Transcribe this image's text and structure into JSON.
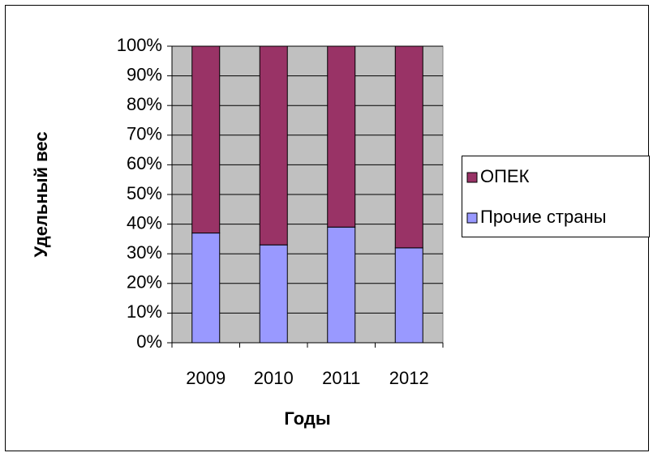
{
  "chart_data": {
    "type": "stacked_bar_100",
    "categories": [
      "2009",
      "2010",
      "2011",
      "2012"
    ],
    "series": [
      {
        "name": "Прочие страны",
        "color": "#9999ff",
        "values": [
          37,
          33,
          39,
          32
        ]
      },
      {
        "name": "ОПЕК",
        "color": "#993366",
        "values": [
          63,
          67,
          61,
          68
        ]
      }
    ],
    "ylim": [
      0,
      100
    ],
    "yticks": [
      {
        "value": 0,
        "label": "0%"
      },
      {
        "value": 10,
        "label": "10%"
      },
      {
        "value": 20,
        "label": "20%"
      },
      {
        "value": 30,
        "label": "30%"
      },
      {
        "value": 40,
        "label": "40%"
      },
      {
        "value": 50,
        "label": "50%"
      },
      {
        "value": 60,
        "label": "60%"
      },
      {
        "value": 70,
        "label": "70%"
      },
      {
        "value": 80,
        "label": "80%"
      },
      {
        "value": 90,
        "label": "90%"
      },
      {
        "value": 100,
        "label": "100%"
      }
    ],
    "xlabel": "Годы",
    "ylabel": "Удельный вес",
    "grid": true,
    "legend": "right"
  }
}
